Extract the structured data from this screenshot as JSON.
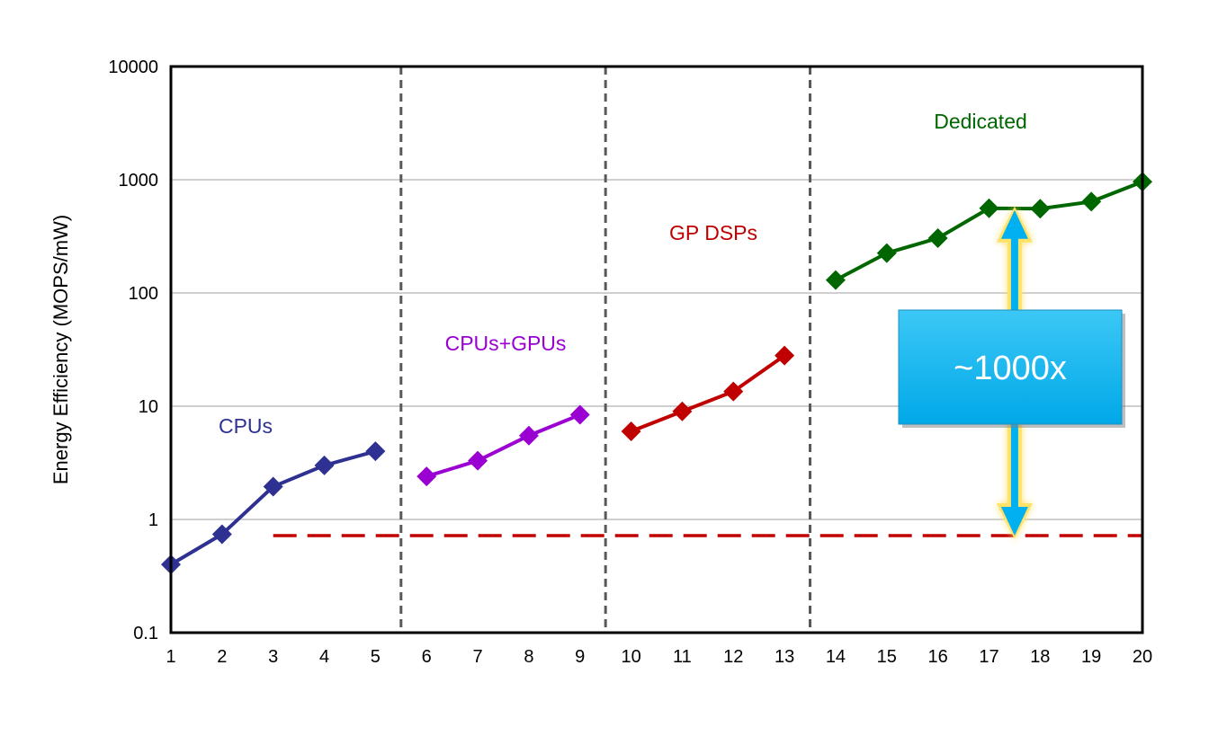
{
  "chart_data": {
    "type": "line",
    "ylabel": "Energy Efficiency (MOPS/mW)",
    "xlabel": "",
    "y_scale": "log",
    "ylim": [
      0.1,
      10000
    ],
    "xlim": [
      1,
      20
    ],
    "x_ticks": [
      "1",
      "2",
      "3",
      "4",
      "5",
      "6",
      "7",
      "8",
      "9",
      "10",
      "11",
      "12",
      "13",
      "14",
      "15",
      "16",
      "17",
      "18",
      "19",
      "20"
    ],
    "y_ticks": [
      "0.1",
      "1",
      "10",
      "100",
      "1000",
      "10000"
    ],
    "grid": "horizontal",
    "dividers_x": [
      5.5,
      9.5,
      13.5
    ],
    "series": [
      {
        "name": "CPUs",
        "color": "#2e3192",
        "x": [
          1,
          2,
          3,
          4,
          5
        ],
        "y": [
          0.4,
          0.74,
          1.95,
          3.0,
          4.0
        ]
      },
      {
        "name": "CPUs+GPUs",
        "color": "#9b00d3",
        "x": [
          6,
          7,
          8,
          9
        ],
        "y": [
          2.4,
          3.3,
          5.5,
          8.4
        ]
      },
      {
        "name": "GP DSPs",
        "color": "#c00000",
        "x": [
          10,
          11,
          12,
          13
        ],
        "y": [
          6.0,
          9.0,
          13.5,
          28.0
        ]
      },
      {
        "name": "Dedicated",
        "color": "#006600",
        "x": [
          14,
          15,
          16,
          17,
          18,
          19,
          20
        ],
        "y": [
          130,
          225,
          305,
          560,
          555,
          640,
          960
        ]
      }
    ],
    "reference_line": {
      "y": 0.72,
      "x_start": 3,
      "x_end": 20,
      "style": "dashed",
      "color": "#c00000"
    },
    "callout": {
      "text": "~1000x",
      "fill": "#00b0f0",
      "arrow_color": "#00b0f0",
      "glow_color": "#ffe26b",
      "x": 17.5,
      "y_top": 540,
      "y_bottom": 0.72
    }
  }
}
